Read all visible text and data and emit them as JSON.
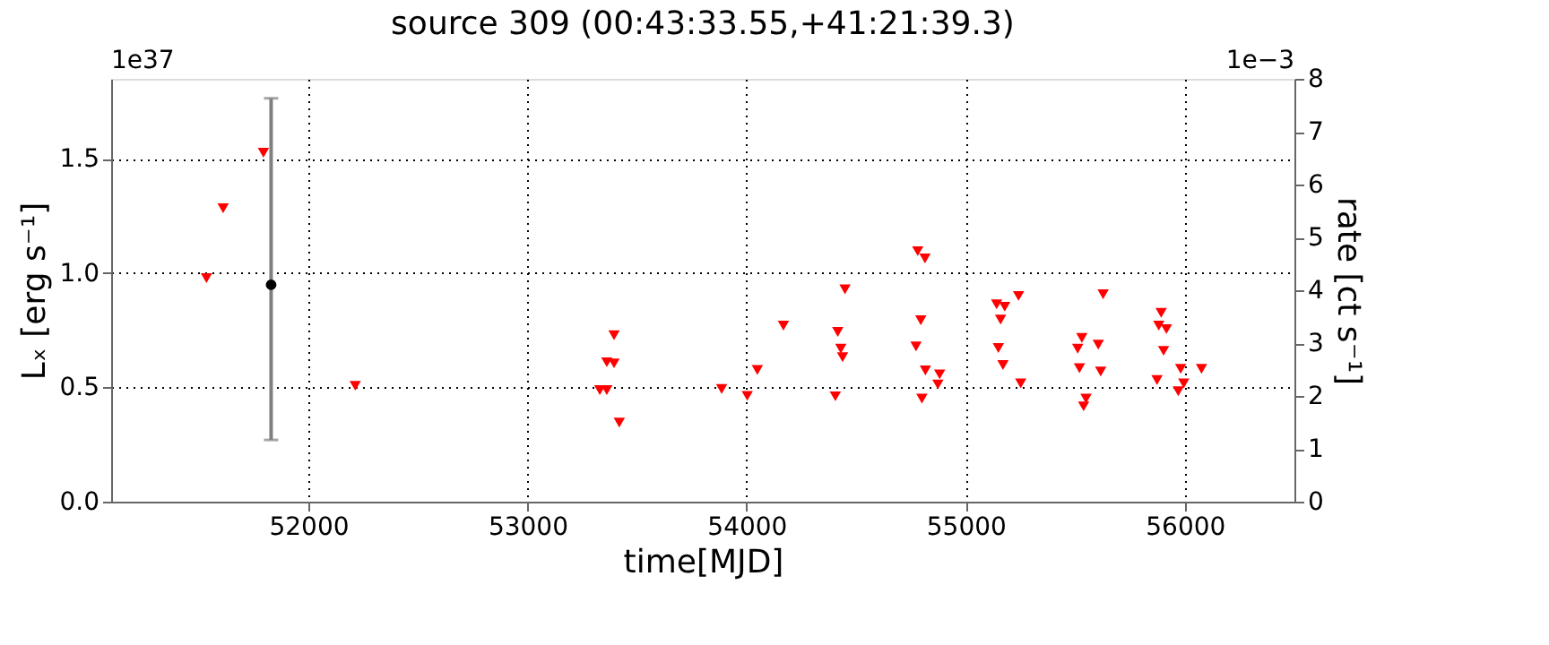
{
  "chart_data": {
    "type": "scatter",
    "title": "source 309    (00:43:33.55,+41:21:39.3)",
    "xlabel": "time[MJD]",
    "ylabel": "Lₓ [erg s⁻¹]",
    "y2label": "rate [ct s⁻¹]",
    "annotations": [
      "1e37",
      "1e−3"
    ],
    "xlim": [
      51100,
      56500
    ],
    "xticks": [
      52000,
      53000,
      54000,
      55000,
      56000
    ],
    "ylim": [
      0,
      1.85
    ],
    "yticks": [
      {
        "value": 0,
        "label": "0.0"
      },
      {
        "value": 0.5,
        "label": "0.5"
      },
      {
        "value": 1.0,
        "label": "1.0"
      },
      {
        "value": 1.5,
        "label": "1.5"
      }
    ],
    "y2lim": [
      0,
      8
    ],
    "y2ticks": [
      0,
      1,
      2,
      3,
      4,
      5,
      6,
      7,
      8
    ],
    "grid": true,
    "series": [
      {
        "color": "#ff0000",
        "marker": "triangle",
        "x": [
          51535,
          51611,
          51795,
          52214,
          53330,
          53349,
          53362,
          53362,
          53395,
          53395,
          53419,
          53886,
          54003,
          54049,
          54168,
          54405,
          54416,
          54430,
          54438,
          54449,
          54781,
          54814,
          54795,
          54773,
          54816,
          54800,
          54873,
          54881,
          55141,
          55178,
          55159,
          55241,
          55149,
          55170,
          55251,
          55627,
          55530,
          55511,
          55605,
          55519,
          55616,
          55549,
          55538,
          55892,
          55881,
          55916,
          55903,
          55873,
          55981,
          55970,
          55995,
          56076
        ],
        "values": [
          0.978,
          1.284,
          1.527,
          0.507,
          0.488,
          null,
          0.488,
          0.61,
          0.605,
          0.728,
          0.346,
          0.493,
          0.463,
          0.576,
          0.77,
          0.461,
          0.743,
          0.669,
          0.632,
          0.929,
          1.096,
          1.064,
          0.794,
          0.679,
          0.574,
          0.451,
          0.513,
          0.557,
          0.863,
          0.853,
          0.797,
          0.9,
          0.672,
          0.598,
          0.517,
          0.907,
          0.716,
          0.669,
          0.687,
          0.584,
          0.569,
          0.451,
          0.417,
          0.826,
          0.77,
          0.755,
          0.66,
          0.532,
          0.581,
          0.483,
          0.517,
          0.581
        ]
      },
      {
        "color": "#000000",
        "marker": "circle",
        "x": [
          51830
        ],
        "values": [
          0.949
        ],
        "errors": [
          [
            0.27,
            1.765
          ]
        ]
      }
    ]
  }
}
